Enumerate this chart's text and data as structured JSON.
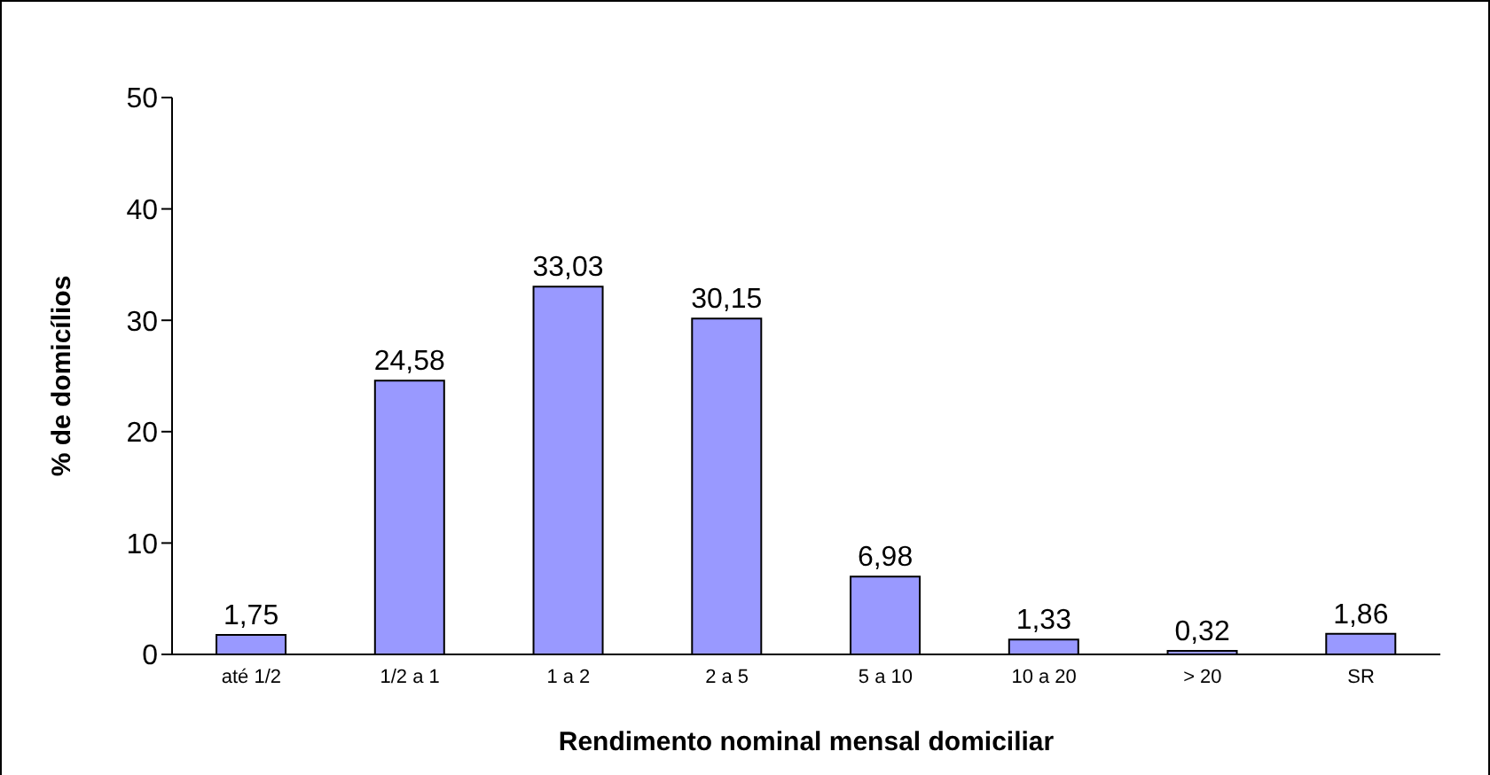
{
  "chart_data": {
    "type": "bar",
    "xlabel": "Rendimento nominal mensal domiciliar",
    "ylabel": "% de domicílios",
    "categories": [
      "até 1/2",
      "1/2 a 1",
      "1 a 2",
      "2 a 5",
      "5 a 10",
      "10 a 20",
      "> 20",
      "SR"
    ],
    "values": [
      1.75,
      24.58,
      33.03,
      30.15,
      6.98,
      1.33,
      0.32,
      1.86
    ],
    "value_labels": [
      "1,75",
      "24,58",
      "33,03",
      "30,15",
      "6,98",
      "1,33",
      "0,32",
      "1,86"
    ],
    "color": "#9999ff",
    "ylim": [
      0,
      50
    ],
    "yticks": [
      0,
      10,
      20,
      30,
      40,
      50
    ],
    "grid": false,
    "legend": false
  }
}
